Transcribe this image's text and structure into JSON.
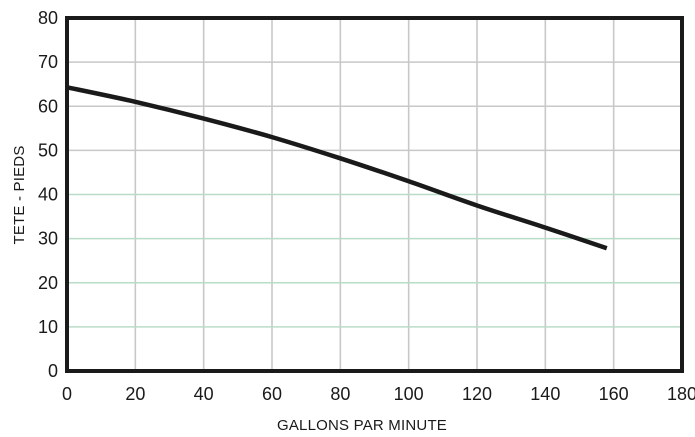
{
  "chart_data": {
    "type": "line",
    "title": "",
    "xlabel": "GALLONS PAR MINUTE",
    "ylabel": "TETE - PIEDS",
    "xlim": [
      0,
      180
    ],
    "ylim": [
      0,
      80
    ],
    "xticks": [
      0,
      20,
      40,
      60,
      80,
      100,
      120,
      140,
      160,
      180
    ],
    "yticks": [
      0,
      10,
      20,
      30,
      40,
      50,
      60,
      70,
      80
    ],
    "grid": true,
    "colors": {
      "line": "#1a1a1a",
      "frame": "#1a1a1a",
      "grid_vertical": "#c8c8c8",
      "grid_horizontal_upper": "#c8c8c8",
      "grid_horizontal_lower": "#b8dcc8"
    },
    "series": [
      {
        "x": [
          0,
          20,
          40,
          60,
          80,
          100,
          120,
          140,
          158
        ],
        "y": [
          64.3,
          61.0,
          57.2,
          53.0,
          48.2,
          43.0,
          37.5,
          32.5,
          27.8
        ]
      }
    ]
  }
}
